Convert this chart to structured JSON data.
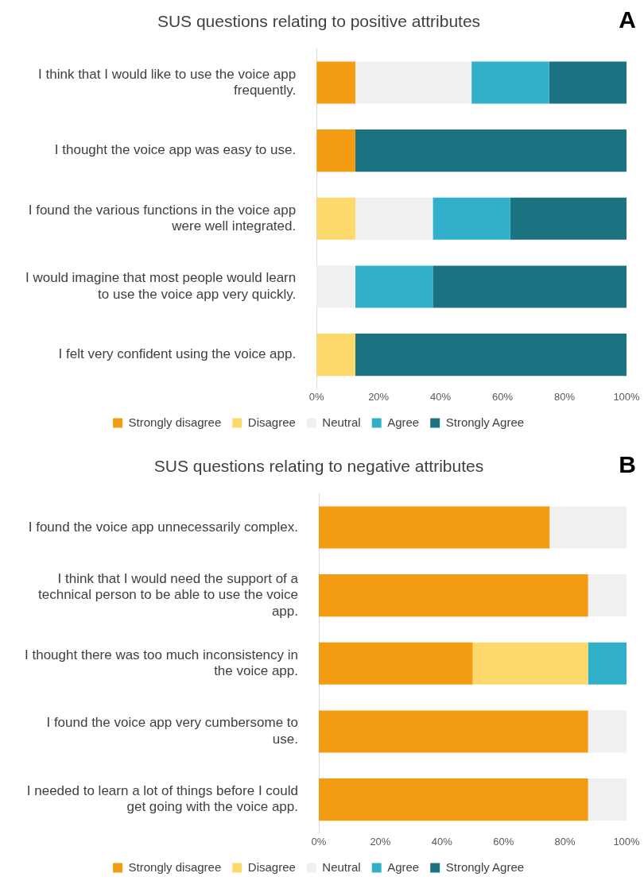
{
  "chart_data": [
    {
      "type": "bar",
      "orientation": "horizontal",
      "stacked": true,
      "title": "SUS questions relating to positive attributes",
      "annotations": [
        "A"
      ],
      "categories": [
        "I think that I would like to use the voice app frequently.",
        "I thought the voice app was easy to use.",
        "I found the various functions in the voice app were well integrated.",
        "I would imagine that most people would learn to use the voice app very quickly.",
        "I felt very confident using the voice app."
      ],
      "series": [
        {
          "name": "Strongly disagree",
          "color": "#f39c12",
          "values": [
            12.5,
            12.5,
            0,
            0,
            0
          ]
        },
        {
          "name": "Disagree",
          "color": "#fdd86b",
          "values": [
            0,
            0,
            12.5,
            0,
            12.5
          ]
        },
        {
          "name": "Neutral",
          "color": "#f0f0f0",
          "values": [
            37.5,
            0,
            25,
            12.5,
            0
          ]
        },
        {
          "name": "Agree",
          "color": "#31b0ca",
          "values": [
            25,
            0,
            25,
            25,
            0
          ]
        },
        {
          "name": "Strongly Agree",
          "color": "#1b7381",
          "values": [
            25,
            87.5,
            37.5,
            62.5,
            87.5
          ]
        }
      ],
      "xlim": [
        0,
        100
      ],
      "xticks": [
        {
          "value": 0,
          "label": "0%"
        },
        {
          "value": 20,
          "label": "20%"
        },
        {
          "value": 40,
          "label": "40%"
        },
        {
          "value": 60,
          "label": "60%"
        },
        {
          "value": 80,
          "label": "80%"
        },
        {
          "value": 100,
          "label": "100%"
        }
      ],
      "grid": false,
      "legend": "bottom"
    },
    {
      "type": "bar",
      "orientation": "horizontal",
      "stacked": true,
      "title": "SUS questions relating to negative attributes",
      "annotations": [
        "B"
      ],
      "categories": [
        "I found the voice app unnecessarily complex.",
        "I think that I would need the support of a technical person to be able to use the voice app.",
        "I thought there was too much inconsistency in the voice app.",
        "I found the voice app very cumbersome to use.",
        "I needed to learn a lot of things before I could get going with the voice app."
      ],
      "series": [
        {
          "name": "Strongly disagree",
          "color": "#f39c12",
          "values": [
            75,
            87.5,
            50,
            87.5,
            87.5
          ]
        },
        {
          "name": "Disagree",
          "color": "#fdd86b",
          "values": [
            0,
            0,
            37.5,
            0,
            0
          ]
        },
        {
          "name": "Neutral",
          "color": "#f0f0f0",
          "values": [
            25,
            12.5,
            0,
            12.5,
            12.5
          ]
        },
        {
          "name": "Agree",
          "color": "#31b0ca",
          "values": [
            0,
            0,
            12.5,
            0,
            0
          ]
        },
        {
          "name": "Strongly Agree",
          "color": "#1b7381",
          "values": [
            0,
            0,
            0,
            0,
            0
          ]
        }
      ],
      "xlim": [
        0,
        100
      ],
      "xticks": [
        {
          "value": 0,
          "label": "0%"
        },
        {
          "value": 20,
          "label": "20%"
        },
        {
          "value": 40,
          "label": "40%"
        },
        {
          "value": 60,
          "label": "60%"
        },
        {
          "value": 80,
          "label": "80%"
        },
        {
          "value": 100,
          "label": "100%"
        }
      ],
      "grid": false,
      "legend": "bottom"
    }
  ]
}
